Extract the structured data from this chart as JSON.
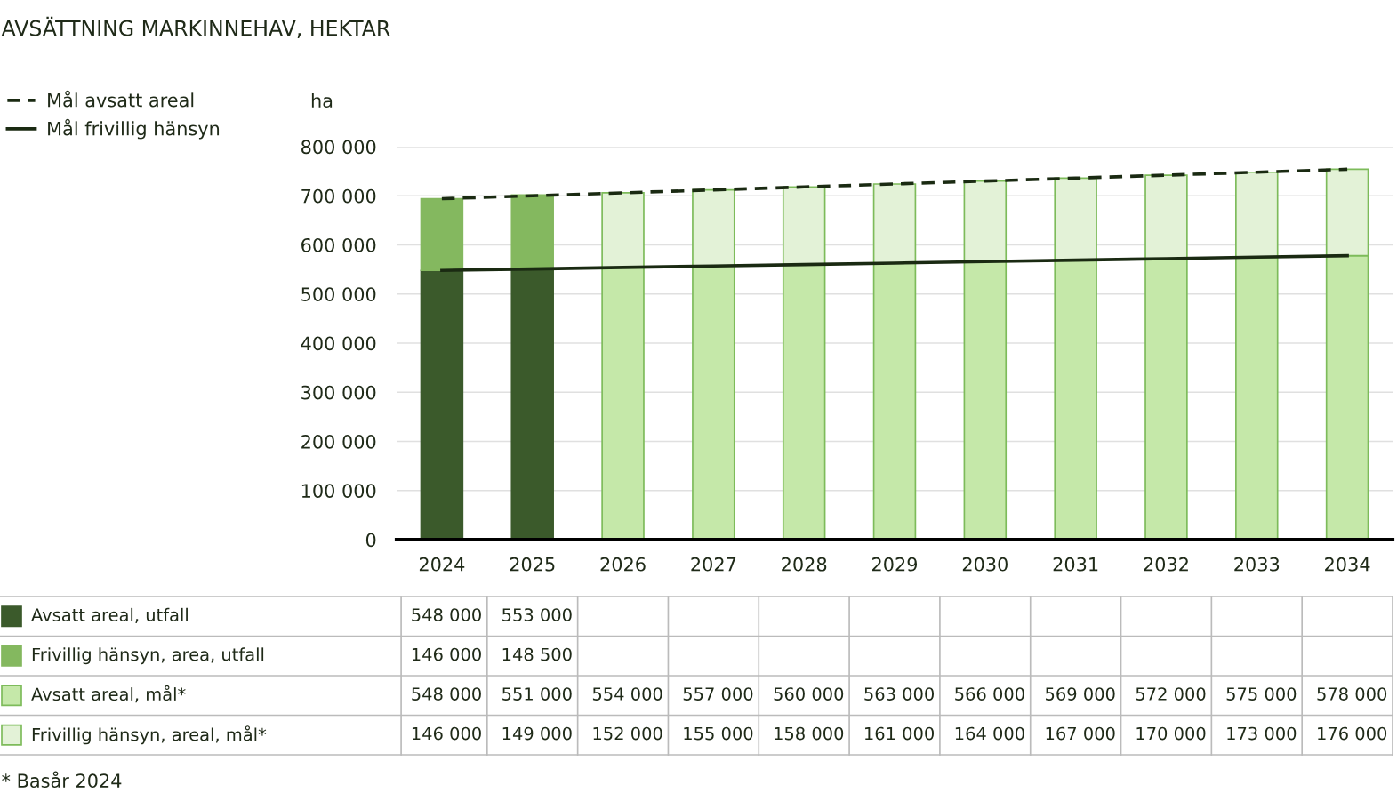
{
  "chart_data": {
    "type": "bar",
    "title": "AVSÄTTNING MARKINNEHAV, HEKTAR",
    "ylabel": "ha",
    "stacked": true,
    "grid": "y",
    "legend": "left",
    "categories": [
      "2024",
      "2025",
      "2026",
      "2027",
      "2028",
      "2029",
      "2030",
      "2031",
      "2032",
      "2033",
      "2034"
    ],
    "ylim": [
      0,
      800000
    ],
    "yticks": [
      0,
      {
        "value": 100000,
        "label": "100 000"
      },
      {
        "value": 200000,
        "label": "200 000"
      },
      {
        "value": 300000,
        "label": "300 000"
      },
      {
        "value": 400000,
        "label": "400 000"
      },
      {
        "value": 500000,
        "label": "500 000"
      },
      {
        "value": 600000,
        "label": "600 000"
      },
      {
        "value": 700000,
        "label": "700 000"
      },
      {
        "value": 800000,
        "label": "800 000"
      }
    ],
    "series": [
      {
        "name": "Avsatt areal, utfall",
        "color": "#3b5a2b",
        "values": [
          548000,
          553000,
          null,
          null,
          null,
          null,
          null,
          null,
          null,
          null,
          null
        ],
        "value_labels": [
          "548 000",
          "553 000",
          null,
          null,
          null,
          null,
          null,
          null,
          null,
          null,
          null
        ]
      },
      {
        "name": "Frivillig hänsyn, area, utfall",
        "color": "#84b85f",
        "values": [
          146000,
          148500,
          null,
          null,
          null,
          null,
          null,
          null,
          null,
          null,
          null
        ],
        "value_labels": [
          "146 000",
          "148 500",
          null,
          null,
          null,
          null,
          null,
          null,
          null,
          null,
          null
        ]
      },
      {
        "name": "Avsatt areal, mål*",
        "color": "#c5e8a9",
        "values": [
          null,
          null,
          554000,
          557000,
          560000,
          563000,
          566000,
          569000,
          572000,
          575000,
          578000
        ],
        "value_labels": [
          "548 000",
          "551 000",
          "554 000",
          "557 000",
          "560 000",
          "563 000",
          "566 000",
          "569 000",
          "572 000",
          "575 000",
          "578 000"
        ]
      },
      {
        "name": "Frivillig hänsyn, areal, mål*",
        "color": "#e3f2d7",
        "values": [
          null,
          null,
          152000,
          155000,
          158000,
          161000,
          164000,
          167000,
          170000,
          173000,
          176000
        ],
        "value_labels": [
          "146 000",
          "149 000",
          "152 000",
          "155 000",
          "158 000",
          "161 000",
          "164 000",
          "167 000",
          "170 000",
          "173 000",
          "176 000"
        ]
      },
      {
        "name": "Mål avsatt areal",
        "type": "line",
        "color": "#1a2a12",
        "line_style": "dashed",
        "values": [
          694000,
          700000,
          706000,
          712000,
          718000,
          724000,
          730000,
          736000,
          742000,
          748000,
          754000
        ]
      },
      {
        "name": "Mål frivillig hänsyn",
        "type": "line",
        "color": "#1a2a12",
        "line_style": "solid",
        "values": [
          548000,
          551000,
          554000,
          557000,
          560000,
          563000,
          566000,
          569000,
          572000,
          575000,
          578000
        ]
      }
    ],
    "annotations": [
      "* Basår 2024"
    ]
  }
}
